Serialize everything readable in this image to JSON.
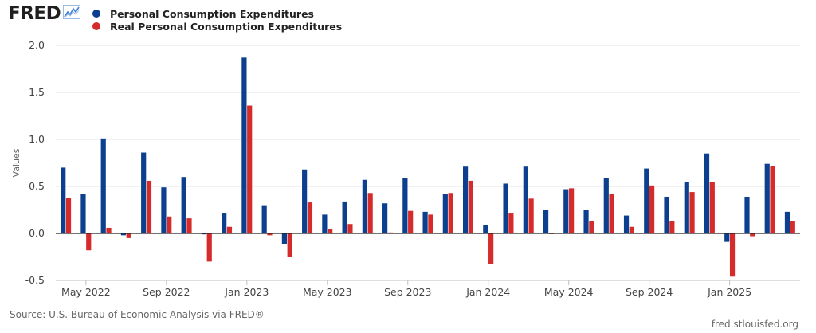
{
  "header": {
    "logo_text": "FRED",
    "logo_icon": "chart-line-icon"
  },
  "colors": {
    "series1": "#0d3f8f",
    "series2": "#d62b2b"
  },
  "footer": {
    "source": "Source: U.S. Bureau of Economic Analysis via FRED®",
    "site": "fred.stlouisfed.org"
  },
  "chart_data": {
    "type": "bar",
    "ylabel": "Values",
    "ylim": [
      -0.5,
      2.0
    ],
    "yticks": [
      -0.5,
      0.0,
      0.5,
      1.0,
      1.5,
      2.0
    ],
    "ytick_labels": [
      "-0.5",
      "0.0",
      "0.5",
      "1.0",
      "1.5",
      "2.0"
    ],
    "grid": true,
    "legend": "top-left",
    "categories": [
      "2022-04",
      "2022-05",
      "2022-06",
      "2022-07",
      "2022-08",
      "2022-09",
      "2022-10",
      "2022-11",
      "2022-12",
      "2023-01",
      "2023-02",
      "2023-03",
      "2023-04",
      "2023-05",
      "2023-06",
      "2023-07",
      "2023-08",
      "2023-09",
      "2023-10",
      "2023-11",
      "2023-12",
      "2024-01",
      "2024-02",
      "2024-03",
      "2024-04",
      "2024-05",
      "2024-06",
      "2024-07",
      "2024-08",
      "2024-09",
      "2024-10",
      "2024-11",
      "2024-12",
      "2025-01",
      "2025-02",
      "2025-03",
      "2025-04"
    ],
    "xtick_labels": [
      {
        "category": "2022-05",
        "label": "May 2022"
      },
      {
        "category": "2022-09",
        "label": "Sep 2022"
      },
      {
        "category": "2023-01",
        "label": "Jan 2023"
      },
      {
        "category": "2023-05",
        "label": "May 2023"
      },
      {
        "category": "2023-09",
        "label": "Sep 2023"
      },
      {
        "category": "2024-01",
        "label": "Jan 2024"
      },
      {
        "category": "2024-05",
        "label": "May 2024"
      },
      {
        "category": "2024-09",
        "label": "Sep 2024"
      },
      {
        "category": "2025-01",
        "label": "Jan 2025"
      }
    ],
    "series": [
      {
        "name": "Personal Consumption Expenditures",
        "values": [
          0.7,
          0.42,
          1.01,
          -0.02,
          0.86,
          0.49,
          0.6,
          -0.01,
          0.22,
          1.87,
          0.3,
          -0.11,
          0.68,
          0.2,
          0.34,
          0.57,
          0.32,
          0.59,
          0.23,
          0.42,
          0.71,
          0.09,
          0.53,
          0.71,
          0.25,
          0.47,
          0.25,
          0.59,
          0.19,
          0.69,
          0.39,
          0.55,
          0.85,
          -0.09,
          0.39,
          0.74,
          0.23
        ]
      },
      {
        "name": "Real Personal Consumption Expenditures",
        "values": [
          0.38,
          -0.18,
          0.06,
          -0.05,
          0.56,
          0.18,
          0.16,
          -0.3,
          0.07,
          1.36,
          -0.02,
          -0.25,
          0.33,
          0.05,
          0.1,
          0.43,
          0.01,
          0.24,
          0.2,
          0.43,
          0.56,
          -0.33,
          0.22,
          0.37,
          0.0,
          0.48,
          0.13,
          0.42,
          0.07,
          0.51,
          0.13,
          0.44,
          0.55,
          -0.46,
          -0.03,
          0.72,
          0.13
        ]
      }
    ]
  }
}
